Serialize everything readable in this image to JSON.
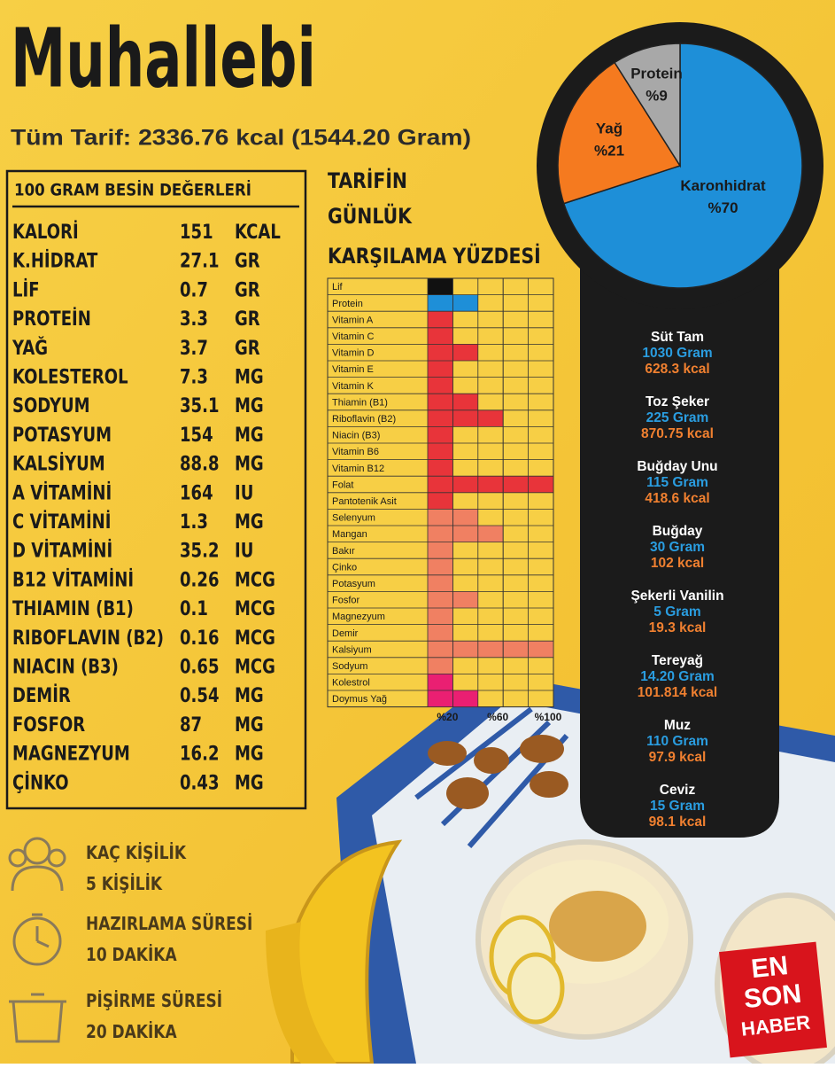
{
  "title": "Muhallebi",
  "subtitle": "Tüm Tarif: 2336.76 kcal (1544.20 Gram)",
  "nutrition_table": {
    "header": "100 GRAM BESİN DEĞERLERİ",
    "rows": [
      [
        "KALORİ",
        "151",
        "KCAL"
      ],
      [
        "K.HİDRAT",
        "27.1",
        "GR"
      ],
      [
        "LİF",
        "0.7",
        "GR"
      ],
      [
        "PROTEİN",
        "3.3",
        "GR"
      ],
      [
        "YAĞ",
        "3.7",
        "GR"
      ],
      [
        "KOLESTEROL",
        "7.3",
        "MG"
      ],
      [
        "SODYUM",
        "35.1",
        "MG"
      ],
      [
        "POTASYUM",
        "154",
        "MG"
      ],
      [
        "KALSİYUM",
        "88.8",
        "MG"
      ],
      [
        "A VİTAMİNİ",
        "164",
        "IU"
      ],
      [
        "C VİTAMİNİ",
        "1.3",
        "MG"
      ],
      [
        "D VİTAMİNİ",
        "35.2",
        "IU"
      ],
      [
        "B12 VİTAMİNİ",
        "0.26",
        "MCG"
      ],
      [
        "THIAMIN (B1)",
        "0.1",
        "MCG"
      ],
      [
        "RIBOFLAVIN (B2)",
        "0.16",
        "MCG"
      ],
      [
        "NIACIN (B3)",
        "0.65",
        "MCG"
      ],
      [
        "DEMİR",
        "0.54",
        "MG"
      ],
      [
        "FOSFOR",
        "87",
        "MG"
      ],
      [
        "MAGNEZYUM",
        "16.2",
        "MG"
      ],
      [
        "ÇİNKO",
        "0.43",
        "MG"
      ]
    ]
  },
  "chart_data": [
    {
      "type": "pie",
      "categories": [
        "Karonhidrat",
        "Yağ",
        "Protein"
      ],
      "values": [
        70,
        21,
        9
      ],
      "value_labels": [
        "%70",
        "%21",
        "%9"
      ],
      "colors": [
        "#1e8fd8",
        "#f57a1f",
        "#a8a8a8"
      ]
    },
    {
      "type": "hbar",
      "title_lines": [
        "TARİFİN",
        "GÜNLÜK",
        "KARŞILAMA YÜZDESİ"
      ],
      "categories": [
        "Lif",
        "Protein",
        "Vitamin A",
        "Vitamin C",
        "Vitamin D",
        "Vitamin E",
        "Vitamin K",
        "Thiamin (B1)",
        "Riboflavin (B2)",
        "Niacin (B3)",
        "Vitamin B6",
        "Vitamin B12",
        "Folat",
        "Pantotenik Asit",
        "Selenyum",
        "Mangan",
        "Bakır",
        "Çinko",
        "Potasyum",
        "Fosfor",
        "Magnezyum",
        "Demir",
        "Kalsiyum",
        "Sodyum",
        "Kolestrol",
        "Doymus Yağ"
      ],
      "values": [
        20,
        40,
        20,
        20,
        40,
        20,
        20,
        40,
        60,
        20,
        20,
        20,
        100,
        20,
        40,
        60,
        20,
        20,
        20,
        40,
        20,
        20,
        100,
        20,
        20,
        40
      ],
      "colors": [
        "#111111",
        "#1e8fd8",
        "#e8343a",
        "#e8343a",
        "#e8343a",
        "#e8343a",
        "#e8343a",
        "#e8343a",
        "#e8343a",
        "#e8343a",
        "#e8343a",
        "#e8343a",
        "#e8343a",
        "#e8343a",
        "#f08062",
        "#f08062",
        "#f08062",
        "#f08062",
        "#f08062",
        "#f08062",
        "#f08062",
        "#f08062",
        "#f08062",
        "#f08062",
        "#ea1f72",
        "#ea1f72"
      ],
      "xlim": [
        0,
        100
      ],
      "xticks": [
        {
          "value": 20,
          "label": "%20"
        },
        {
          "value": 60,
          "label": "%60"
        },
        {
          "value": 100,
          "label": "%100"
        }
      ]
    }
  ],
  "ingredients": [
    [
      "Süt Tam",
      "1030 Gram",
      "628.3 kcal"
    ],
    [
      "Toz Şeker",
      "225 Gram",
      "870.75 kcal"
    ],
    [
      "Buğday Unu",
      "115 Gram",
      "418.6 kcal"
    ],
    [
      "Buğday",
      "30 Gram",
      "102 kcal"
    ],
    [
      "Şekerli Vanilin",
      "5 Gram",
      "19.3 kcal"
    ],
    [
      "Tereyağ",
      "14.20 Gram",
      "101.814 kcal"
    ],
    [
      "Muz",
      "110 Gram",
      "97.9 kcal"
    ],
    [
      "Ceviz",
      "15 Gram",
      "98.1 kcal"
    ]
  ],
  "info": [
    [
      "KAÇ KİŞİLİK",
      "5 KİŞİLİK"
    ],
    [
      "HAZIRLAMA SÜRESİ",
      "10 DAKİKA"
    ],
    [
      "PİŞİRME SÜRESİ",
      "20 DAKİKA"
    ]
  ],
  "logo": [
    "EN",
    "SON",
    "HABER"
  ]
}
